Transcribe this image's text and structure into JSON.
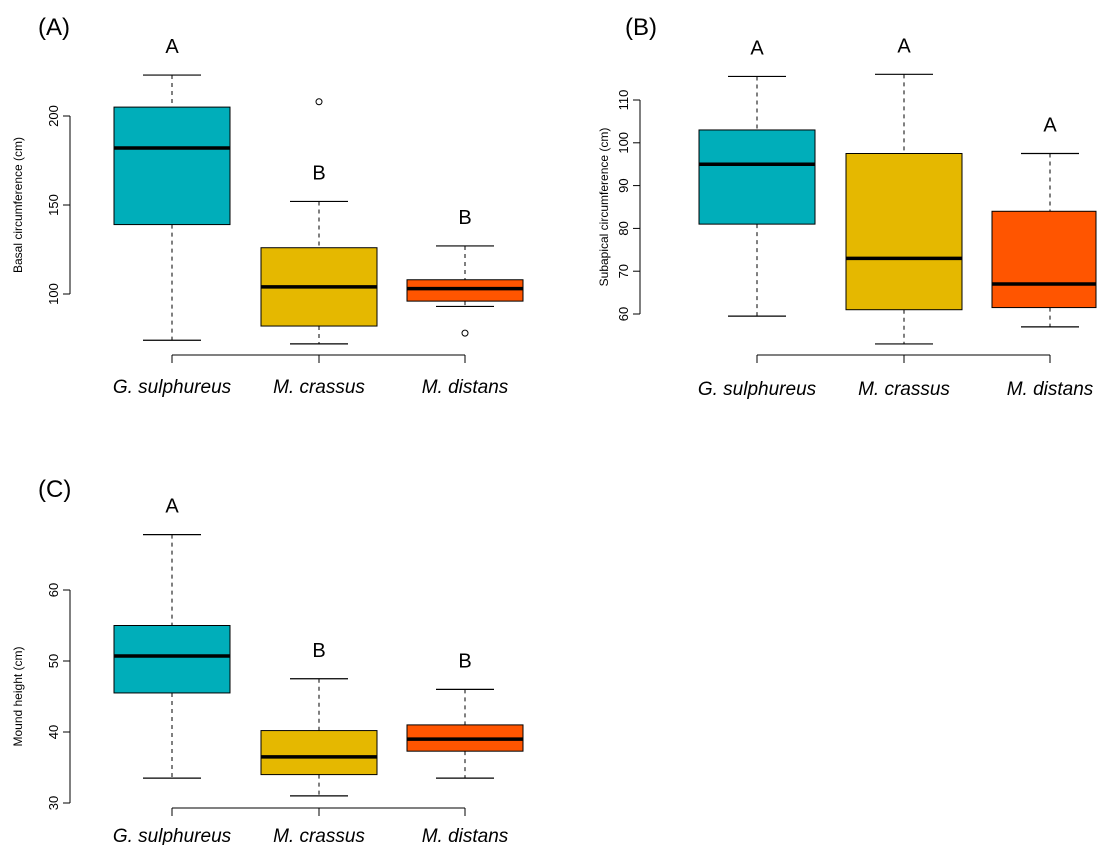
{
  "colors": [
    "#00AEBA",
    "#E5B800",
    "#FF5500"
  ],
  "chart_data": [
    {
      "type": "box",
      "panel_label": "(A)",
      "ylabel": "Basal circumference (cm)",
      "categories": [
        "G. sulphureus",
        "M. crassus",
        "M. distans"
      ],
      "yticks": [
        100,
        150,
        200
      ],
      "ylim": [
        68,
        230
      ],
      "boxes": [
        {
          "whisker_low": 74,
          "q1": 139,
          "median": 182,
          "q3": 205,
          "whisker_high": 223,
          "outliers": [],
          "letter": "A"
        },
        {
          "whisker_low": 72,
          "q1": 82,
          "median": 104,
          "q3": 126,
          "whisker_high": 152,
          "outliers": [
            208
          ],
          "letter": "B"
        },
        {
          "whisker_low": 93,
          "q1": 96,
          "median": 103,
          "q3": 108,
          "whisker_high": 127,
          "outliers": [
            78
          ],
          "letter": "B"
        }
      ]
    },
    {
      "type": "box",
      "panel_label": "(B)",
      "ylabel": "Subapical circumference (cm)",
      "categories": [
        "G. sulphureus",
        "M. crassus",
        "M. distans"
      ],
      "yticks": [
        60,
        70,
        80,
        90,
        100,
        110
      ],
      "ylim": [
        52,
        118
      ],
      "boxes": [
        {
          "whisker_low": 59.5,
          "q1": 81,
          "median": 95,
          "q3": 103,
          "whisker_high": 115.5,
          "outliers": [],
          "letter": "A"
        },
        {
          "whisker_low": 53,
          "q1": 61,
          "median": 73,
          "q3": 97.5,
          "whisker_high": 116,
          "outliers": [],
          "letter": "A"
        },
        {
          "whisker_low": 57,
          "q1": 61.5,
          "median": 67,
          "q3": 84,
          "whisker_high": 97.5,
          "outliers": [],
          "letter": "A"
        }
      ]
    },
    {
      "type": "box",
      "panel_label": "(C)",
      "ylabel": "Mound height (cm)",
      "categories": [
        "G. sulphureus",
        "M. crassus",
        "M. distans"
      ],
      "yticks": [
        30,
        40,
        50,
        60
      ],
      "ylim": [
        30,
        69
      ],
      "boxes": [
        {
          "whisker_low": 33.5,
          "q1": 45.5,
          "median": 50.7,
          "q3": 55,
          "whisker_high": 67.8,
          "outliers": [],
          "letter": "A"
        },
        {
          "whisker_low": 31,
          "q1": 34,
          "median": 36.5,
          "q3": 40.2,
          "whisker_high": 47.5,
          "outliers": [],
          "letter": "B"
        },
        {
          "whisker_low": 33.5,
          "q1": 37.3,
          "median": 39,
          "q3": 41,
          "whisker_high": 46,
          "outliers": [],
          "letter": "B"
        }
      ]
    }
  ]
}
